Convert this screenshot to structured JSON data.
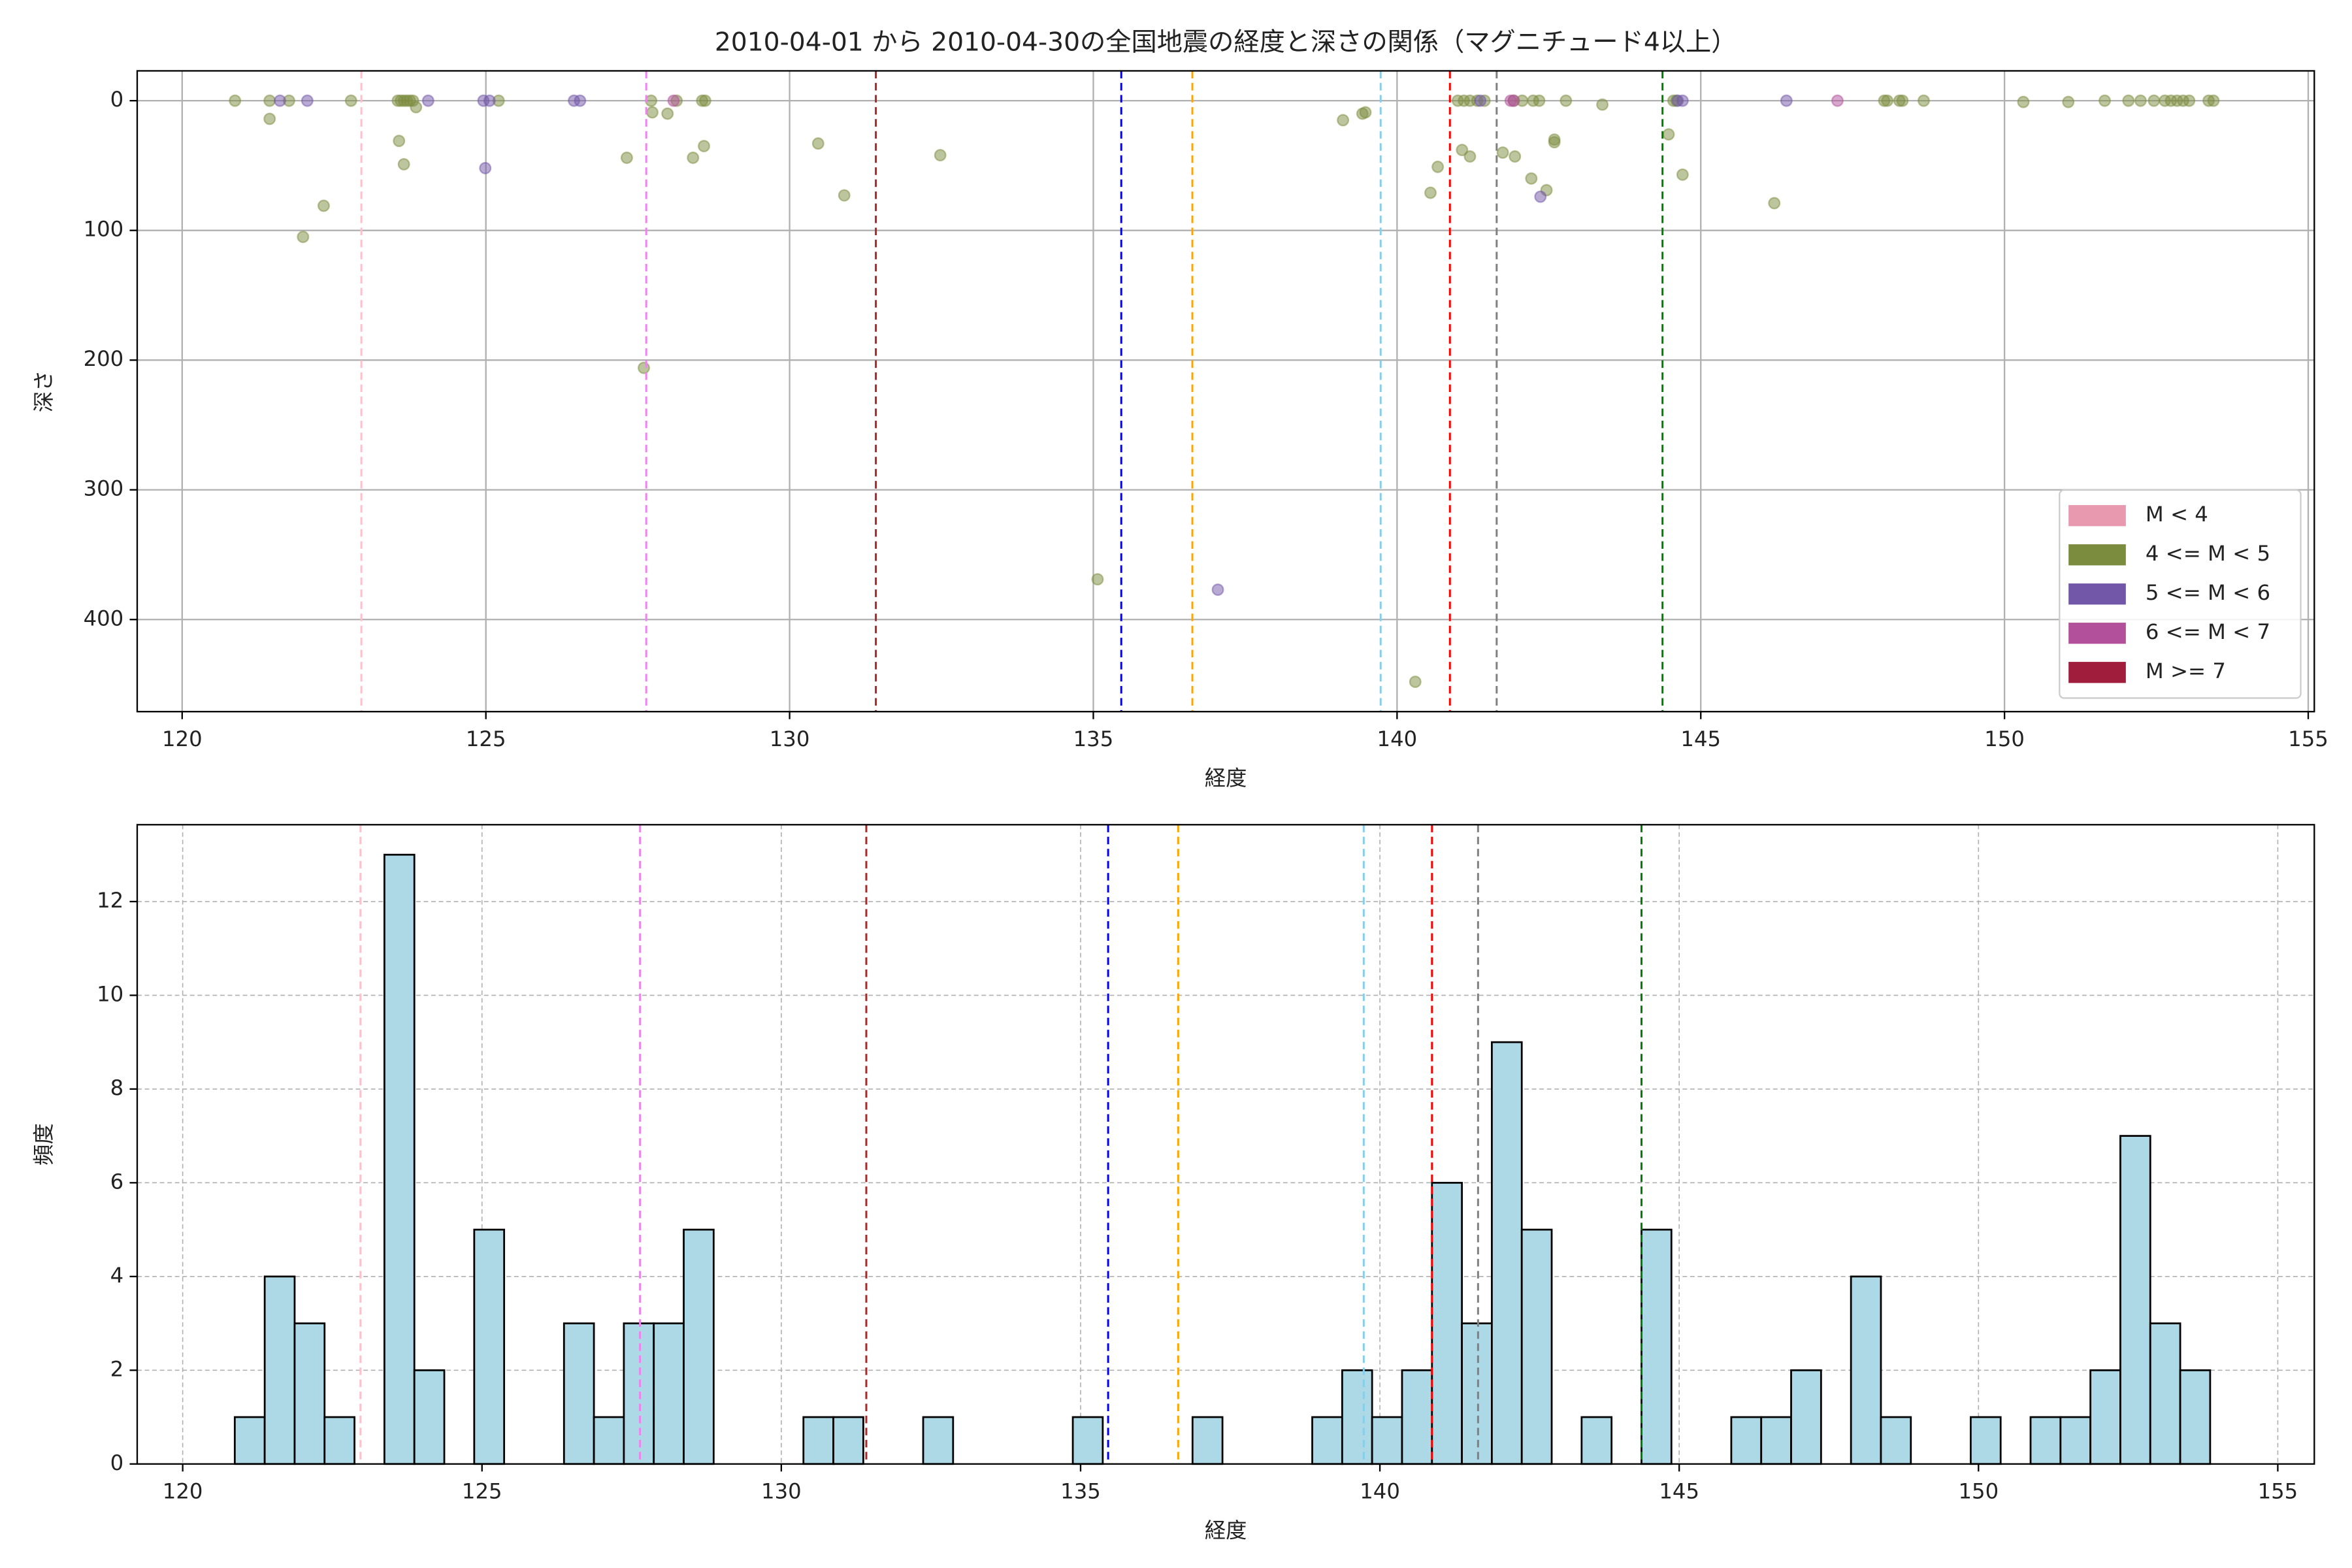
{
  "chart_data": [
    {
      "type": "scatter",
      "title": "2010-04-01 から 2010-04-30の全国地震の経度と深さの関係（マグニチュード4以上）",
      "x_label": "経度",
      "y_label": "深さ",
      "xlim": [
        119.26,
        155.1
      ],
      "ylim": [
        471,
        -23
      ],
      "xticks": [
        120,
        125,
        130,
        135,
        140,
        145,
        150,
        155
      ],
      "yticks": [
        0,
        100,
        200,
        300,
        400
      ],
      "grid": true,
      "grid_style": "solid",
      "legend": "lower right",
      "alpha": 0.5,
      "reference_lines": [
        {
          "x": 122.95,
          "color": "pink"
        },
        {
          "x": 127.64,
          "color": "violet"
        },
        {
          "x": 131.42,
          "color": "brown"
        },
        {
          "x": 135.46,
          "color": "blue"
        },
        {
          "x": 136.63,
          "color": "orange"
        },
        {
          "x": 139.73,
          "color": "skyblue"
        },
        {
          "x": 140.87,
          "color": "red"
        },
        {
          "x": 141.64,
          "color": "gray"
        },
        {
          "x": 144.37,
          "color": "green"
        }
      ],
      "series": [
        {
          "name": "M < 4",
          "color": "#e899b0",
          "x": [],
          "y": []
        },
        {
          "name": "4 <= M < 5",
          "color": "#7c8c3e",
          "x": [
            120.87,
            121.44,
            121.44,
            121.76,
            121.99,
            122.33,
            122.78,
            123.55,
            123.6,
            123.65,
            123.7,
            123.75,
            123.8,
            123.57,
            123.65,
            123.85,
            125.21,
            127.32,
            127.6,
            127.72,
            127.74,
            127.99,
            128.14,
            128.41,
            128.59,
            128.56,
            128.61,
            130.47,
            130.9,
            132.48,
            135.07,
            139.11,
            139.43,
            139.48,
            140.3,
            140.55,
            140.67,
            141.0,
            141.1,
            141.2,
            141.32,
            141.44,
            141.07,
            141.2,
            141.74,
            141.92,
            142.06,
            142.24,
            142.34,
            141.94,
            142.21,
            142.46,
            142.59,
            142.59,
            142.78,
            143.38,
            144.47,
            144.55,
            144.6,
            144.7,
            146.21,
            148.02,
            148.07,
            148.27,
            148.32,
            148.67,
            150.31,
            151.05,
            151.65,
            152.04,
            152.24,
            152.46,
            152.64,
            152.74,
            152.84,
            152.94,
            153.04,
            153.36,
            153.44
          ],
          "y": [
            0,
            0,
            14,
            0,
            105,
            81,
            0,
            0,
            0,
            0,
            0,
            0,
            0,
            31,
            49,
            5,
            0,
            44,
            206,
            0,
            9,
            10,
            0,
            44,
            35,
            0,
            0,
            33,
            73,
            42,
            369,
            15,
            10,
            9,
            448,
            71,
            51,
            0,
            0,
            0,
            0,
            0,
            38,
            43,
            40,
            0,
            0,
            0,
            0,
            43,
            60,
            69,
            30,
            32,
            0,
            3,
            26,
            0,
            0,
            57,
            79,
            0,
            0,
            0,
            0,
            0,
            1,
            1,
            0,
            0,
            0,
            0,
            0,
            0,
            0,
            0,
            0,
            0,
            0
          ]
        },
        {
          "name": "5 <= M < 6",
          "color": "#7256a8",
          "x": [
            121.61,
            122.06,
            124.05,
            124.96,
            125.06,
            124.99,
            126.45,
            126.55,
            137.05,
            141.37,
            142.36,
            144.62,
            144.7,
            146.41
          ],
          "y": [
            0,
            0,
            0,
            0,
            0,
            52,
            0,
            0,
            377,
            0,
            74,
            0,
            0,
            0
          ]
        },
        {
          "name": "6 <= M < 7",
          "color": "#b2509b",
          "x": [
            128.09,
            141.87,
            141.92,
            147.25
          ],
          "y": [
            0,
            0,
            0,
            0
          ]
        },
        {
          "name": "M >= 7",
          "color": "#a01e3c",
          "x": [],
          "y": []
        }
      ]
    },
    {
      "type": "histogram",
      "x_label": "経度",
      "y_label": "頻度",
      "xlim": [
        119.24,
        155.61
      ],
      "ylim": [
        0,
        13.64
      ],
      "xticks": [
        120,
        125,
        130,
        135,
        140,
        145,
        150,
        155
      ],
      "yticks": [
        0,
        2,
        4,
        6,
        8,
        10,
        12
      ],
      "grid": true,
      "grid_style": "dashed",
      "color": "#add8e6",
      "edgecolor": "#000000",
      "reference_lines": [
        {
          "x": 122.97,
          "color": "pink"
        },
        {
          "x": 127.64,
          "color": "violet"
        },
        {
          "x": 131.42,
          "color": "brown"
        },
        {
          "x": 135.46,
          "color": "blue"
        },
        {
          "x": 136.63,
          "color": "orange"
        },
        {
          "x": 139.73,
          "color": "skyblue"
        },
        {
          "x": 140.87,
          "color": "red"
        },
        {
          "x": 141.64,
          "color": "gray"
        },
        {
          "x": 144.37,
          "color": "green"
        }
      ],
      "bins": [
        120.87,
        121.37,
        121.87,
        122.37,
        122.87,
        123.37,
        123.87,
        124.37,
        124.87,
        125.37,
        125.87,
        126.37,
        126.87,
        127.37,
        127.87,
        128.37,
        128.87,
        129.37,
        129.87,
        130.37,
        130.87,
        131.37,
        131.87,
        132.37,
        132.87,
        133.37,
        133.87,
        134.37,
        134.87,
        135.37,
        135.87,
        136.37,
        136.87,
        137.37,
        137.87,
        138.37,
        138.87,
        139.37,
        139.87,
        140.37,
        140.87,
        141.37,
        141.87,
        142.37,
        142.87,
        143.37,
        143.87,
        144.37,
        144.87,
        145.37,
        145.87,
        146.37,
        146.87,
        147.37,
        147.87,
        148.37,
        148.87,
        149.37,
        149.87,
        150.37,
        150.87,
        151.37,
        151.87,
        152.37,
        152.87,
        153.37,
        153.87
      ],
      "counts": [
        1,
        4,
        3,
        1,
        0,
        13,
        2,
        0,
        5,
        0,
        0,
        3,
        1,
        3,
        3,
        5,
        0,
        0,
        0,
        1,
        1,
        0,
        0,
        1,
        0,
        0,
        0,
        0,
        1,
        0,
        0,
        0,
        1,
        0,
        0,
        0,
        1,
        2,
        1,
        2,
        6,
        3,
        9,
        5,
        0,
        1,
        0,
        5,
        0,
        0,
        1,
        1,
        2,
        0,
        4,
        1,
        0,
        0,
        1,
        0,
        1,
        1,
        2,
        7,
        3,
        2
      ]
    }
  ]
}
